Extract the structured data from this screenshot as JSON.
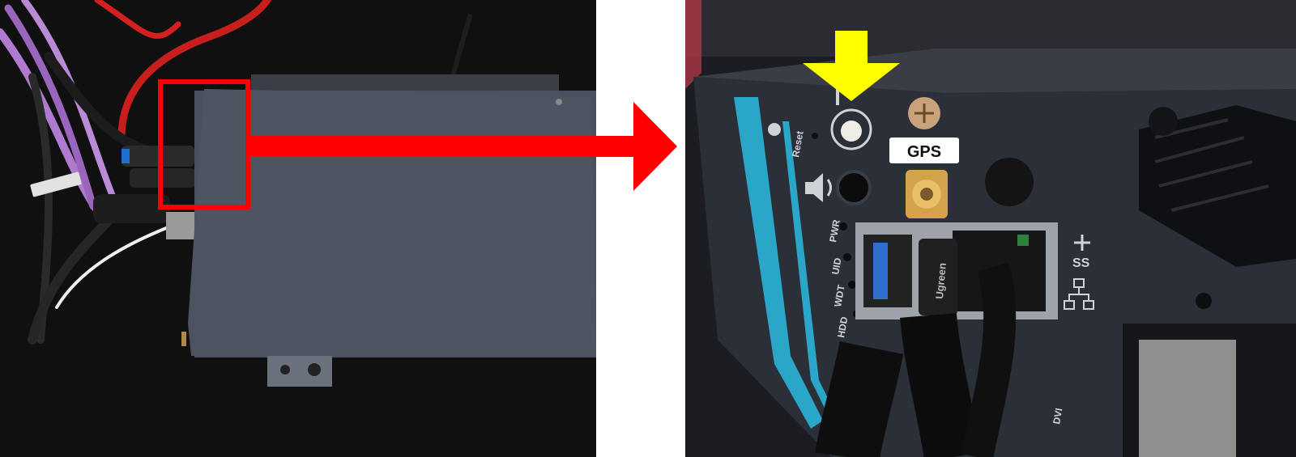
{
  "labels": {
    "reset": "Reset",
    "gps": "GPS",
    "pwr": "PWR",
    "uid": "UID",
    "wdt": "WDT",
    "hdd": "HDD",
    "dvi": "DVI",
    "usb_mark": "SS",
    "cable_brand": "Ugreen"
  },
  "colors": {
    "highlight_box": "#ff0000",
    "arrow_connector": "#ff0000",
    "pointer_arrow": "#ffff00",
    "accent_stripe": "#2aa6c8",
    "usb_port": "#2e6fd0",
    "cable_purple": "#b07ad0",
    "cable_red": "#d42020"
  },
  "icons": {
    "reset_button": "reset-button-icon",
    "audio": "speaker-icon",
    "usb": "usb-icon",
    "network": "network-icon"
  }
}
